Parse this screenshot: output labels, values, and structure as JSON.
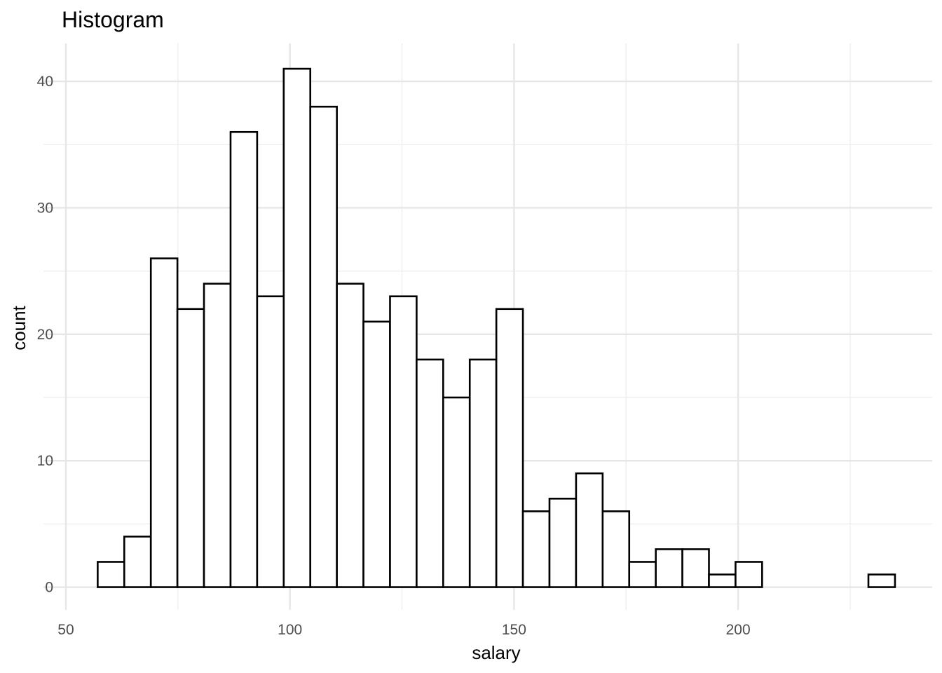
{
  "chart_data": {
    "type": "bar",
    "subtype": "histogram",
    "title": "Histogram",
    "xlabel": "salary",
    "ylabel": "count",
    "xlim": [
      45,
      243.3
    ],
    "ylim": [
      -1.8,
      43.0
    ],
    "x_ticks": [
      50,
      100,
      150,
      200
    ],
    "x_tick_labels": [
      "50",
      "100",
      "150",
      "200"
    ],
    "y_ticks": [
      0,
      10,
      20,
      30,
      40
    ],
    "y_tick_labels": [
      "0",
      "10",
      "20",
      "30",
      "40"
    ],
    "x_minor_ticks": [
      75,
      125,
      175,
      225
    ],
    "y_minor_ticks": [
      5,
      15,
      25,
      35
    ],
    "grid": true,
    "bin_start": 57.1,
    "bin_width": 5.93,
    "values": [
      2,
      4,
      26,
      22,
      24,
      36,
      23,
      41,
      38,
      24,
      21,
      23,
      18,
      15,
      18,
      22,
      6,
      7,
      9,
      6,
      2,
      3,
      3,
      1,
      2,
      0,
      0,
      0,
      0,
      1
    ],
    "colors": {
      "bar_fill": "#ffffff",
      "bar_stroke": "#000000",
      "grid": "#ebebeb",
      "tick_text": "#4d4d4d"
    }
  }
}
